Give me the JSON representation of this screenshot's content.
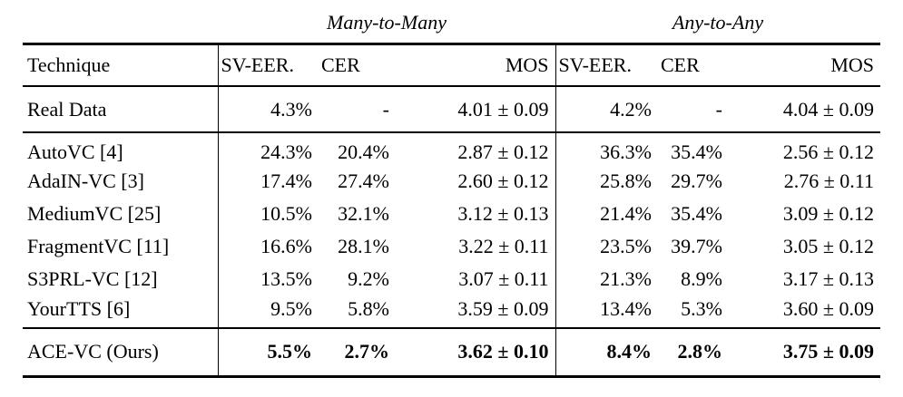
{
  "table": {
    "group_headers": {
      "m2m": "Many-to-Many",
      "a2a": "Any-to-Any"
    },
    "columns": {
      "technique": "Technique",
      "m2m_sv_eer": "SV-EER.",
      "m2m_cer": "CER",
      "m2m_mos": "MOS",
      "a2a_sv_eer": "SV-EER.",
      "a2a_cer": "CER",
      "a2a_mos": "MOS"
    },
    "rows": [
      {
        "technique": "Real Data",
        "cells": [
          "4.3%",
          "-",
          "4.01 ± 0.09",
          "4.2%",
          "-",
          "4.04 ± 0.09"
        ],
        "bold": false
      },
      {
        "technique": "AutoVC [4]",
        "cells": [
          "24.3%",
          "20.4%",
          "2.87 ± 0.12",
          "36.3%",
          "35.4%",
          "2.56 ± 0.12"
        ],
        "bold": false
      },
      {
        "technique": "AdaIN-VC [3]",
        "cells": [
          "17.4%",
          "27.4%",
          "2.60 ± 0.12",
          "25.8%",
          "29.7%",
          "2.76 ± 0.11"
        ],
        "bold": false
      },
      {
        "technique": "MediumVC [25]",
        "cells": [
          "10.5%",
          "32.1%",
          "3.12 ± 0.13",
          "21.4%",
          "35.4%",
          "3.09 ± 0.12"
        ],
        "bold": false
      },
      {
        "technique": "FragmentVC [11]",
        "cells": [
          "16.6%",
          "28.1%",
          "3.22 ± 0.11",
          "23.5%",
          "39.7%",
          "3.05 ± 0.12"
        ],
        "bold": false
      },
      {
        "technique": "S3PRL-VC [12]",
        "cells": [
          "13.5%",
          "9.2%",
          "3.07 ± 0.11",
          "21.3%",
          "8.9%",
          "3.17 ± 0.13"
        ],
        "bold": false
      },
      {
        "technique": "YourTTS [6]",
        "cells": [
          "9.5%",
          "5.8%",
          "3.59 ± 0.09",
          "13.4%",
          "5.3%",
          "3.60 ± 0.09"
        ],
        "bold": false
      },
      {
        "technique": "ACE-VC (Ours)",
        "cells": [
          "5.5%",
          "2.7%",
          "3.62 ± 0.10",
          "8.4%",
          "2.8%",
          "3.75 ± 0.09"
        ],
        "bold": true
      }
    ]
  }
}
